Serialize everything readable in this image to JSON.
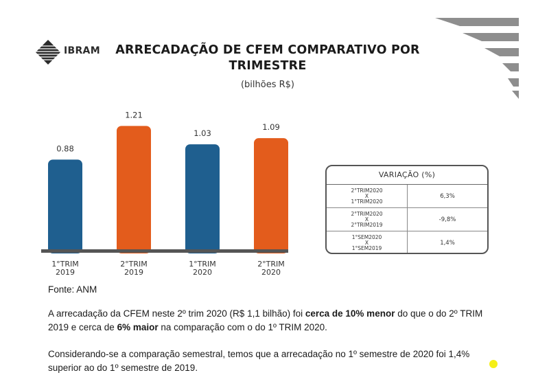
{
  "header": {
    "logo_text": "IBRAM",
    "title": "ARRECADAÇÃO DE CFEM COMPARATIVO POR TRIMESTRE",
    "subtitle": "(bilhões R$)"
  },
  "chart_data": {
    "type": "bar",
    "categories": [
      [
        "1°TRIM",
        "2019"
      ],
      [
        "2°TRIM",
        "2019"
      ],
      [
        "1°TRIM",
        "2020"
      ],
      [
        "2°TRIM",
        "2020"
      ]
    ],
    "values": [
      0.88,
      1.21,
      1.03,
      1.09
    ],
    "value_labels": [
      "0.88",
      "1.21",
      "1.03",
      "1.09"
    ],
    "bar_colors": [
      "#1f5f8f",
      "#e35c1c",
      "#1f5f8f",
      "#e35c1c"
    ],
    "ylim": [
      0,
      1.3
    ],
    "grid": false
  },
  "variation_table": {
    "header": "VARIAÇÃO (%)",
    "rows": [
      {
        "top": "2°TRIM2020",
        "mid": "X",
        "bottom": "1°TRIM2020",
        "value": "6,3%"
      },
      {
        "top": "2°TRIM2020",
        "mid": "X",
        "bottom": "2°TRIM2019",
        "value": "-9,8%"
      },
      {
        "top": "1°SEM2020",
        "mid": "X",
        "bottom": "1°SEM2019",
        "value": "1,4%"
      }
    ]
  },
  "source": "Fonte: ANM",
  "paragraph1": {
    "part1": "A arrecadação da CFEM neste 2º trim 2020 (R$ 1,1 bilhão) foi ",
    "bold1": "cerca de 10% menor",
    "part2": " do que o do 2º TRIM 2019 e cerca de ",
    "bold2": "6% maior",
    "part3": " na comparação com o do 1º TRIM 2020."
  },
  "paragraph2": "Considerando-se a comparação semestral, temos que a arrecadação no 1º semestre de 2020 foi 1,4% superior ao do 1º semestre de 2019.",
  "colors": {
    "blue": "#1f5f8f",
    "orange": "#e35c1c",
    "baseline": "#555555",
    "deco_gray": "#8e8e8e",
    "highlight_dot": "#f5ef17"
  }
}
